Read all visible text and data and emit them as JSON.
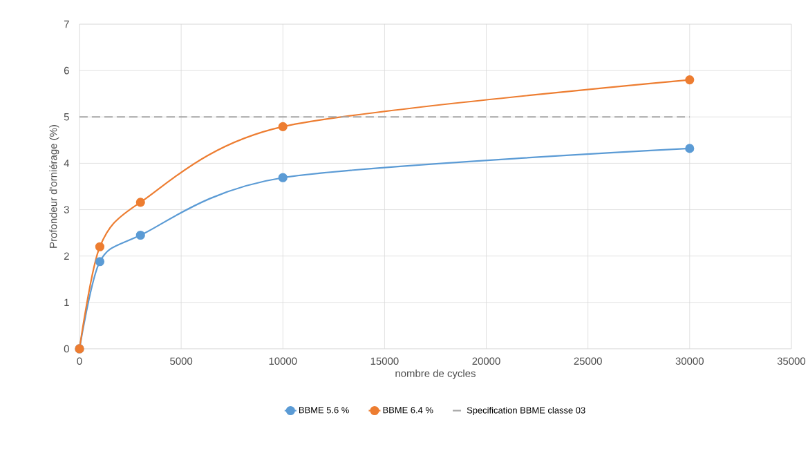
{
  "chart_data": {
    "type": "line",
    "xlabel": "nombre de cycles",
    "ylabel": "Profondeur d'orniérage (%)",
    "xlim": [
      0,
      35000
    ],
    "ylim": [
      0,
      7
    ],
    "xticks": [
      0,
      5000,
      10000,
      15000,
      20000,
      25000,
      30000,
      35000
    ],
    "yticks": [
      0,
      1,
      2,
      3,
      4,
      5,
      6,
      7
    ],
    "grid": true,
    "legend": "bottom",
    "marker": "circle",
    "line_style": "solid",
    "series": [
      {
        "name": "BBME 5.6 %",
        "color": "#5b9bd5",
        "x": [
          0,
          1000,
          3000,
          10000,
          30000
        ],
        "values": [
          0,
          1.88,
          2.45,
          3.69,
          4.32
        ]
      },
      {
        "name": "BBME 6.4 %",
        "color": "#ed7d31",
        "x": [
          0,
          1000,
          3000,
          10000,
          30000
        ],
        "values": [
          0,
          2.2,
          3.16,
          4.79,
          5.8
        ]
      },
      {
        "name": "Specification BBME classe 03",
        "color": "#a5a5a5",
        "x": [
          0,
          30000
        ],
        "values": [
          5,
          5
        ],
        "marker": "none",
        "line_style": "dashed"
      }
    ]
  }
}
